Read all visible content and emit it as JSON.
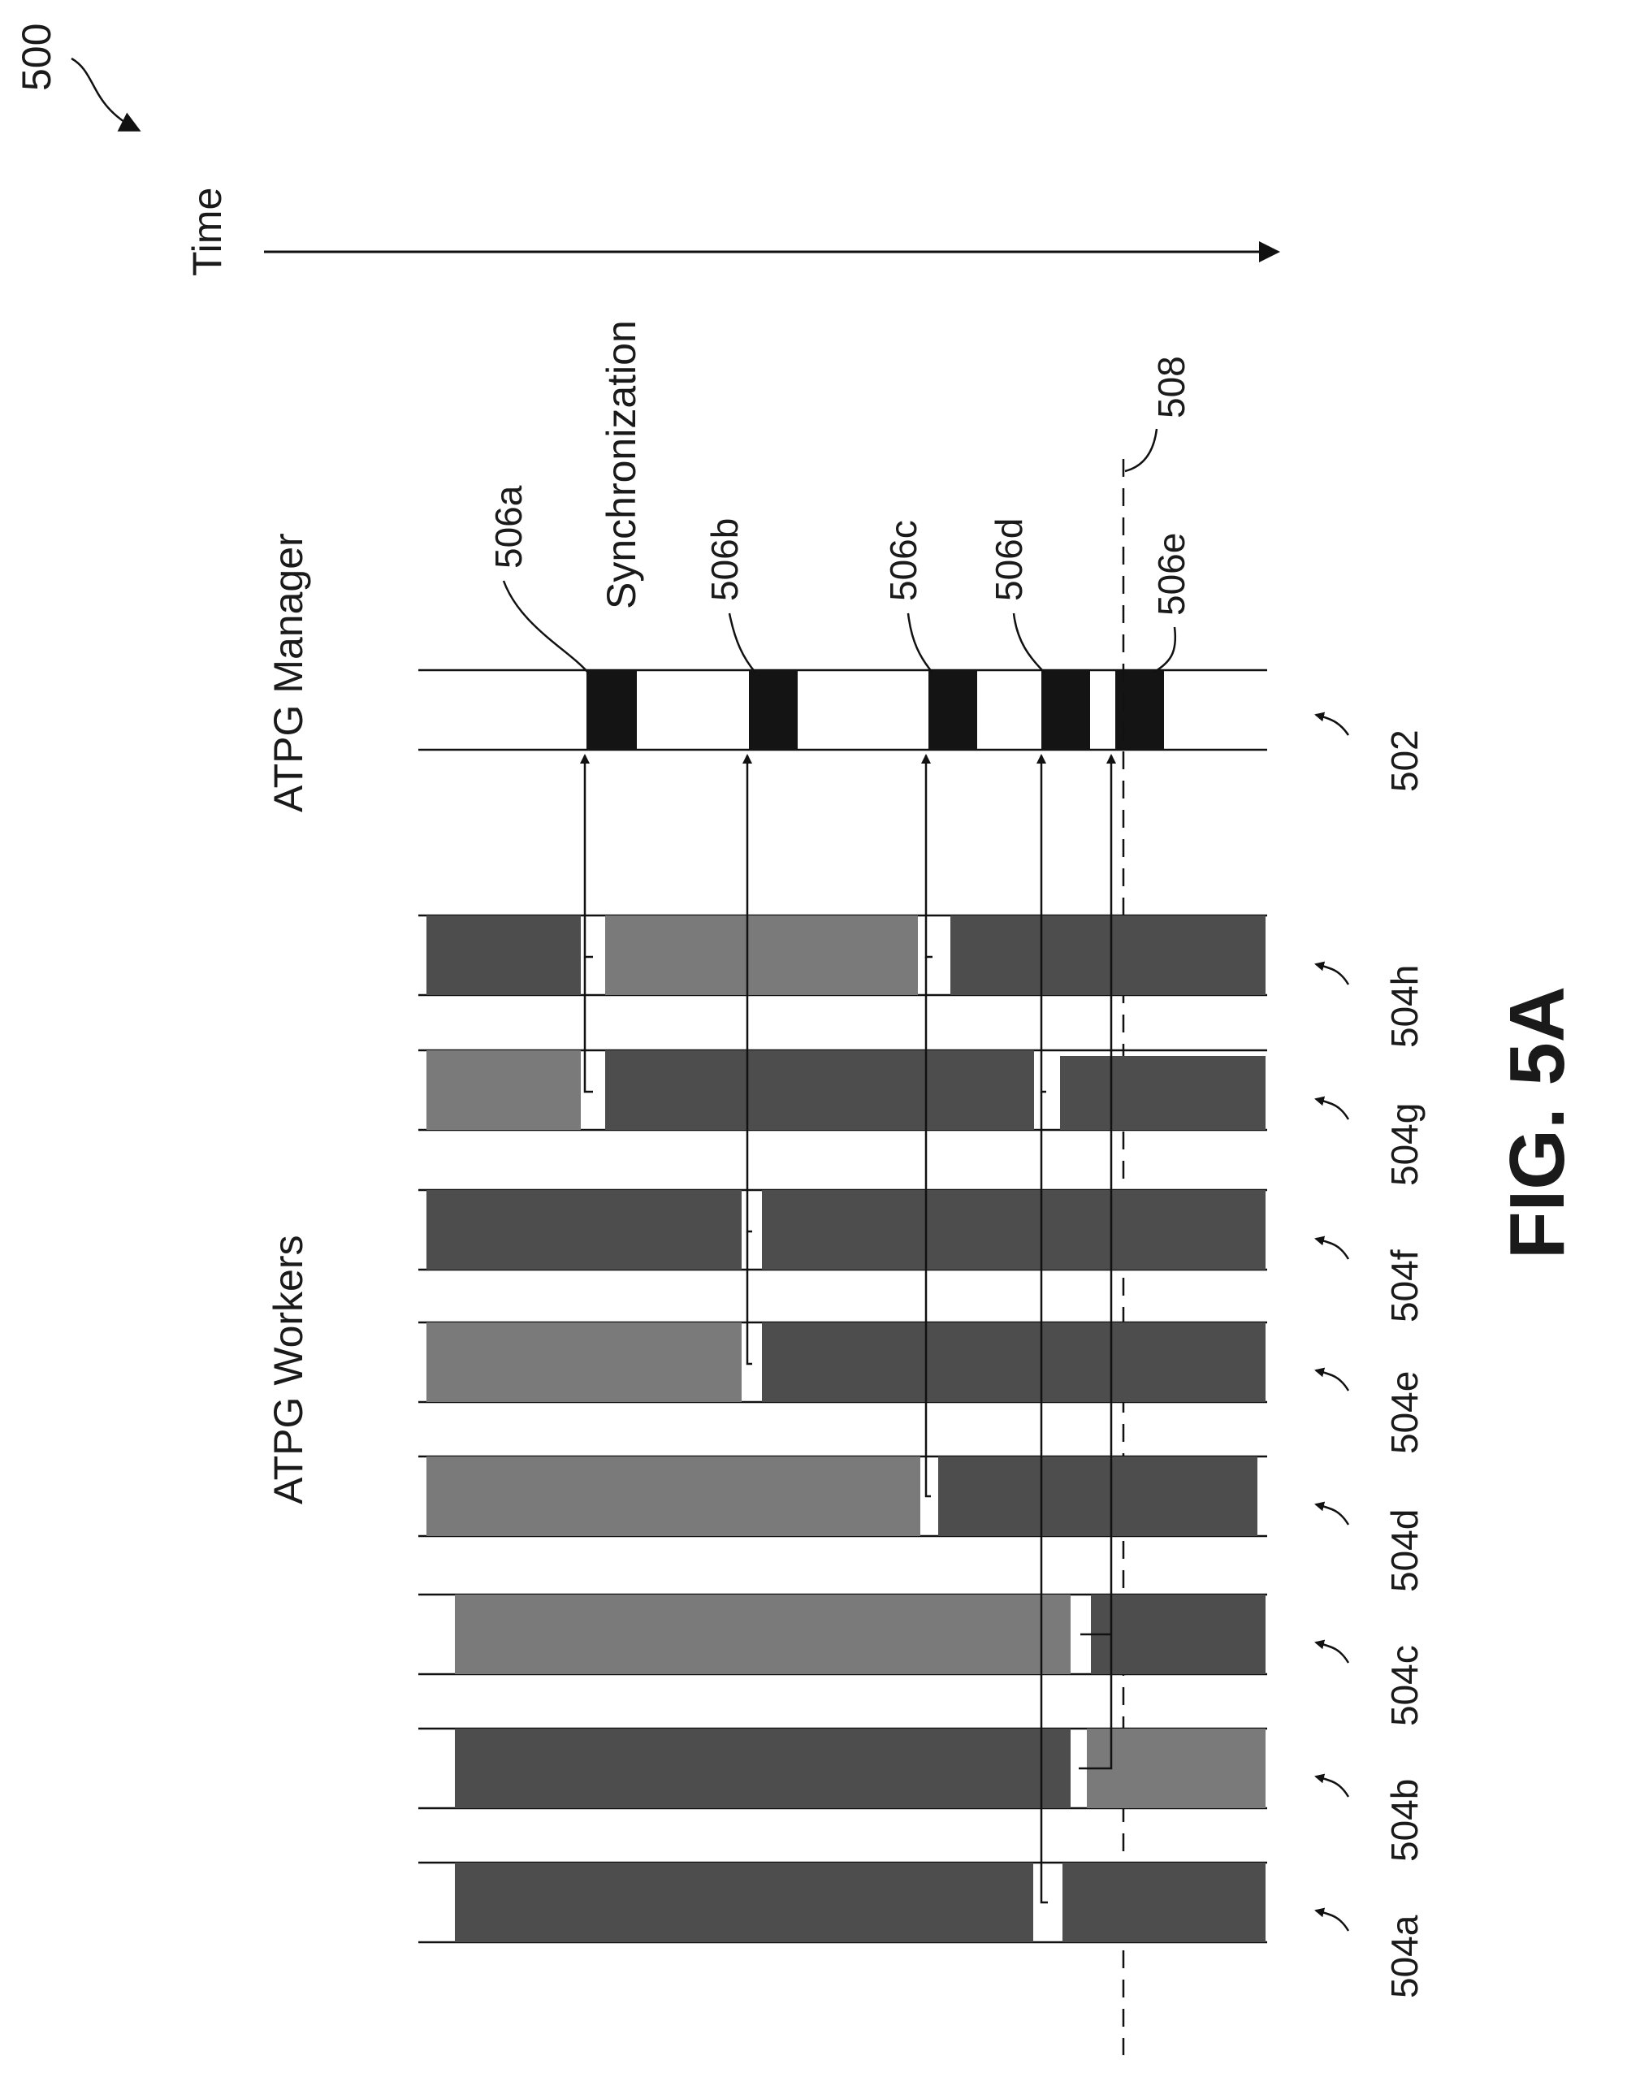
{
  "figure": {
    "ref_number": "500",
    "time_label": "Time",
    "caption": "FIG. 5A"
  },
  "manager": {
    "title": "ATPG Manager",
    "track_ref": "502",
    "sync_label": "Synchronization",
    "sync_blocks": [
      {
        "label": "506a"
      },
      {
        "label": "506b"
      },
      {
        "label": "506c"
      },
      {
        "label": "506d"
      },
      {
        "label": "506e"
      }
    ],
    "marker_label": "508"
  },
  "workers": {
    "title": "ATPG Workers",
    "tracks": [
      {
        "label": "504a"
      },
      {
        "label": "504b"
      },
      {
        "label": "504c"
      },
      {
        "label": "504d"
      },
      {
        "label": "504e"
      },
      {
        "label": "504f"
      },
      {
        "label": "504g"
      },
      {
        "label": "504h"
      }
    ]
  },
  "colors": {
    "segment_dark": "#4d4d4d",
    "segment_light": "#7a7a7a",
    "sync_block": "#141414",
    "line": "#111111"
  }
}
